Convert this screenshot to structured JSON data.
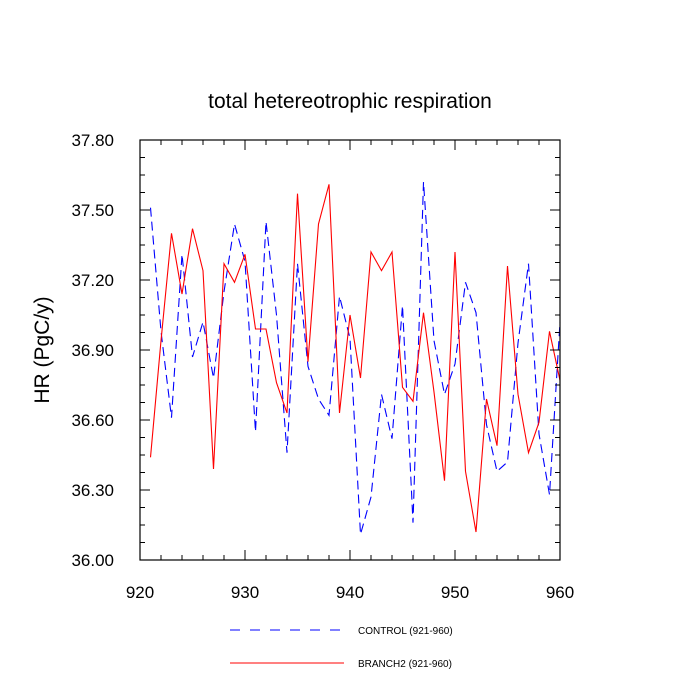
{
  "chart_data": {
    "type": "line",
    "title": "total hetereotrophic respiration",
    "xlabel": "",
    "ylabel": "HR  (PgC/y)",
    "xlim": [
      920,
      960
    ],
    "ylim": [
      36.0,
      37.8
    ],
    "xticks": [
      920,
      930,
      940,
      950,
      960
    ],
    "xtick_labels": [
      "920",
      "930",
      "940",
      "950",
      "960"
    ],
    "yticks": [
      36.0,
      36.3,
      36.6,
      36.9,
      37.2,
      37.5,
      37.8
    ],
    "ytick_labels": [
      "36.00",
      "36.30",
      "36.60",
      "36.90",
      "37.20",
      "37.50",
      "37.80"
    ],
    "grid": false,
    "legend_position": "bottom",
    "x": [
      921,
      922,
      923,
      924,
      925,
      926,
      927,
      928,
      929,
      930,
      931,
      932,
      933,
      934,
      935,
      936,
      937,
      938,
      939,
      940,
      941,
      942,
      943,
      944,
      945,
      946,
      947,
      948,
      949,
      950,
      951,
      952,
      953,
      954,
      955,
      956,
      957,
      958,
      959,
      960
    ],
    "series": [
      {
        "name": "CONTROL (921-960)",
        "color": "#0000ff",
        "dash": "dashed",
        "values": [
          37.51,
          36.98,
          36.61,
          37.31,
          36.87,
          37.02,
          36.78,
          37.15,
          37.44,
          37.28,
          36.55,
          37.45,
          37.05,
          36.46,
          37.27,
          36.83,
          36.69,
          36.62,
          37.13,
          36.95,
          36.11,
          36.27,
          36.71,
          36.52,
          37.09,
          36.16,
          37.62,
          36.94,
          36.71,
          36.84,
          37.19,
          37.06,
          36.58,
          36.38,
          36.42,
          36.93,
          37.27,
          36.54,
          36.28,
          37.02
        ]
      },
      {
        "name": "BRANCH2 (921-960)",
        "color": "#ff0000",
        "dash": "solid",
        "values": [
          36.44,
          36.94,
          37.4,
          37.14,
          37.42,
          37.24,
          36.39,
          37.27,
          37.19,
          37.31,
          36.99,
          36.99,
          36.76,
          36.63,
          37.57,
          36.85,
          37.44,
          37.61,
          36.63,
          37.05,
          36.78,
          37.32,
          37.24,
          37.32,
          36.74,
          36.68,
          37.06,
          36.72,
          36.34,
          37.32,
          36.38,
          36.12,
          36.69,
          36.49,
          37.26,
          36.71,
          36.46,
          36.59,
          36.98,
          36.77
        ]
      }
    ]
  }
}
